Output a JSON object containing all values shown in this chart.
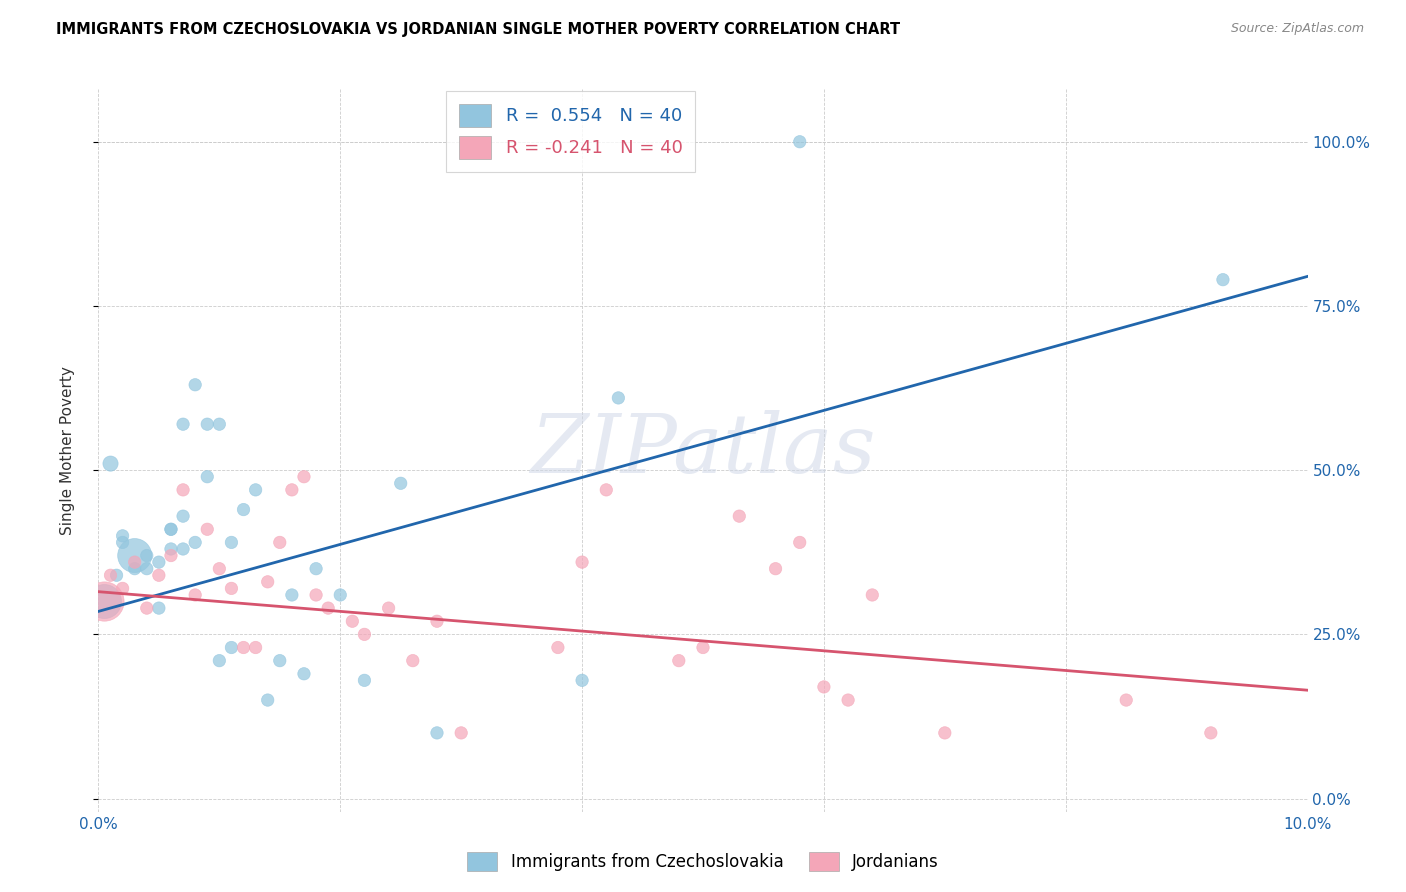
{
  "title": "IMMIGRANTS FROM CZECHOSLOVAKIA VS JORDANIAN SINGLE MOTHER POVERTY CORRELATION CHART",
  "source": "Source: ZipAtlas.com",
  "ylabel": "Single Mother Poverty",
  "xlim": [
    0.0,
    0.1
  ],
  "ylim": [
    -0.02,
    1.08
  ],
  "ytick_vals": [
    0.0,
    0.25,
    0.5,
    0.75,
    1.0
  ],
  "xtick_vals": [
    0.0,
    0.02,
    0.04,
    0.06,
    0.08,
    0.1
  ],
  "xtick_labels": [
    "0.0%",
    "",
    "",
    "",
    "",
    "10.0%"
  ],
  "legend_R1": "R =  0.554   N = 40",
  "legend_R2": "R = -0.241   N = 40",
  "color_blue": "#92c5de",
  "color_pink": "#f4a6b8",
  "color_blue_line": "#2166ac",
  "color_pink_line": "#d6546e",
  "color_blue_dark": "#4393c3",
  "watermark": "ZIPatlas",
  "blue_scatter_x": [
    0.0005,
    0.001,
    0.0015,
    0.002,
    0.002,
    0.003,
    0.003,
    0.004,
    0.004,
    0.005,
    0.005,
    0.006,
    0.006,
    0.006,
    0.007,
    0.007,
    0.007,
    0.008,
    0.008,
    0.009,
    0.009,
    0.01,
    0.01,
    0.011,
    0.011,
    0.012,
    0.013,
    0.014,
    0.015,
    0.016,
    0.017,
    0.018,
    0.02,
    0.022,
    0.025,
    0.028,
    0.04,
    0.043,
    0.058,
    0.093
  ],
  "blue_scatter_y": [
    0.3,
    0.51,
    0.34,
    0.4,
    0.39,
    0.37,
    0.35,
    0.37,
    0.35,
    0.29,
    0.36,
    0.41,
    0.41,
    0.38,
    0.38,
    0.43,
    0.57,
    0.39,
    0.63,
    0.49,
    0.57,
    0.57,
    0.21,
    0.23,
    0.39,
    0.44,
    0.47,
    0.15,
    0.21,
    0.31,
    0.19,
    0.35,
    0.31,
    0.18,
    0.48,
    0.1,
    0.18,
    0.61,
    1.0,
    0.79
  ],
  "blue_scatter_size": [
    600,
    120,
    80,
    80,
    80,
    600,
    80,
    80,
    80,
    80,
    80,
    80,
    80,
    80,
    80,
    80,
    80,
    80,
    80,
    80,
    80,
    80,
    80,
    80,
    80,
    80,
    80,
    80,
    80,
    80,
    80,
    80,
    80,
    80,
    80,
    80,
    80,
    80,
    80,
    80
  ],
  "pink_scatter_x": [
    0.0005,
    0.001,
    0.002,
    0.003,
    0.004,
    0.005,
    0.006,
    0.007,
    0.008,
    0.009,
    0.01,
    0.011,
    0.012,
    0.013,
    0.014,
    0.015,
    0.016,
    0.017,
    0.018,
    0.019,
    0.021,
    0.022,
    0.024,
    0.026,
    0.028,
    0.03,
    0.038,
    0.04,
    0.042,
    0.048,
    0.05,
    0.053,
    0.056,
    0.058,
    0.06,
    0.062,
    0.064,
    0.07,
    0.085,
    0.092
  ],
  "pink_scatter_y": [
    0.3,
    0.34,
    0.32,
    0.36,
    0.29,
    0.34,
    0.37,
    0.47,
    0.31,
    0.41,
    0.35,
    0.32,
    0.23,
    0.23,
    0.33,
    0.39,
    0.47,
    0.49,
    0.31,
    0.29,
    0.27,
    0.25,
    0.29,
    0.21,
    0.27,
    0.1,
    0.23,
    0.36,
    0.47,
    0.21,
    0.23,
    0.43,
    0.35,
    0.39,
    0.17,
    0.15,
    0.31,
    0.1,
    0.15,
    0.1
  ],
  "pink_scatter_size": [
    800,
    80,
    80,
    80,
    80,
    80,
    80,
    80,
    80,
    80,
    80,
    80,
    80,
    80,
    80,
    80,
    80,
    80,
    80,
    80,
    80,
    80,
    80,
    80,
    80,
    80,
    80,
    80,
    80,
    80,
    80,
    80,
    80,
    80,
    80,
    80,
    80,
    80,
    80,
    80
  ],
  "blue_line_x": [
    0.0,
    0.1
  ],
  "blue_line_y": [
    0.285,
    0.795
  ],
  "pink_line_x": [
    0.0,
    0.1
  ],
  "pink_line_y": [
    0.315,
    0.165
  ]
}
